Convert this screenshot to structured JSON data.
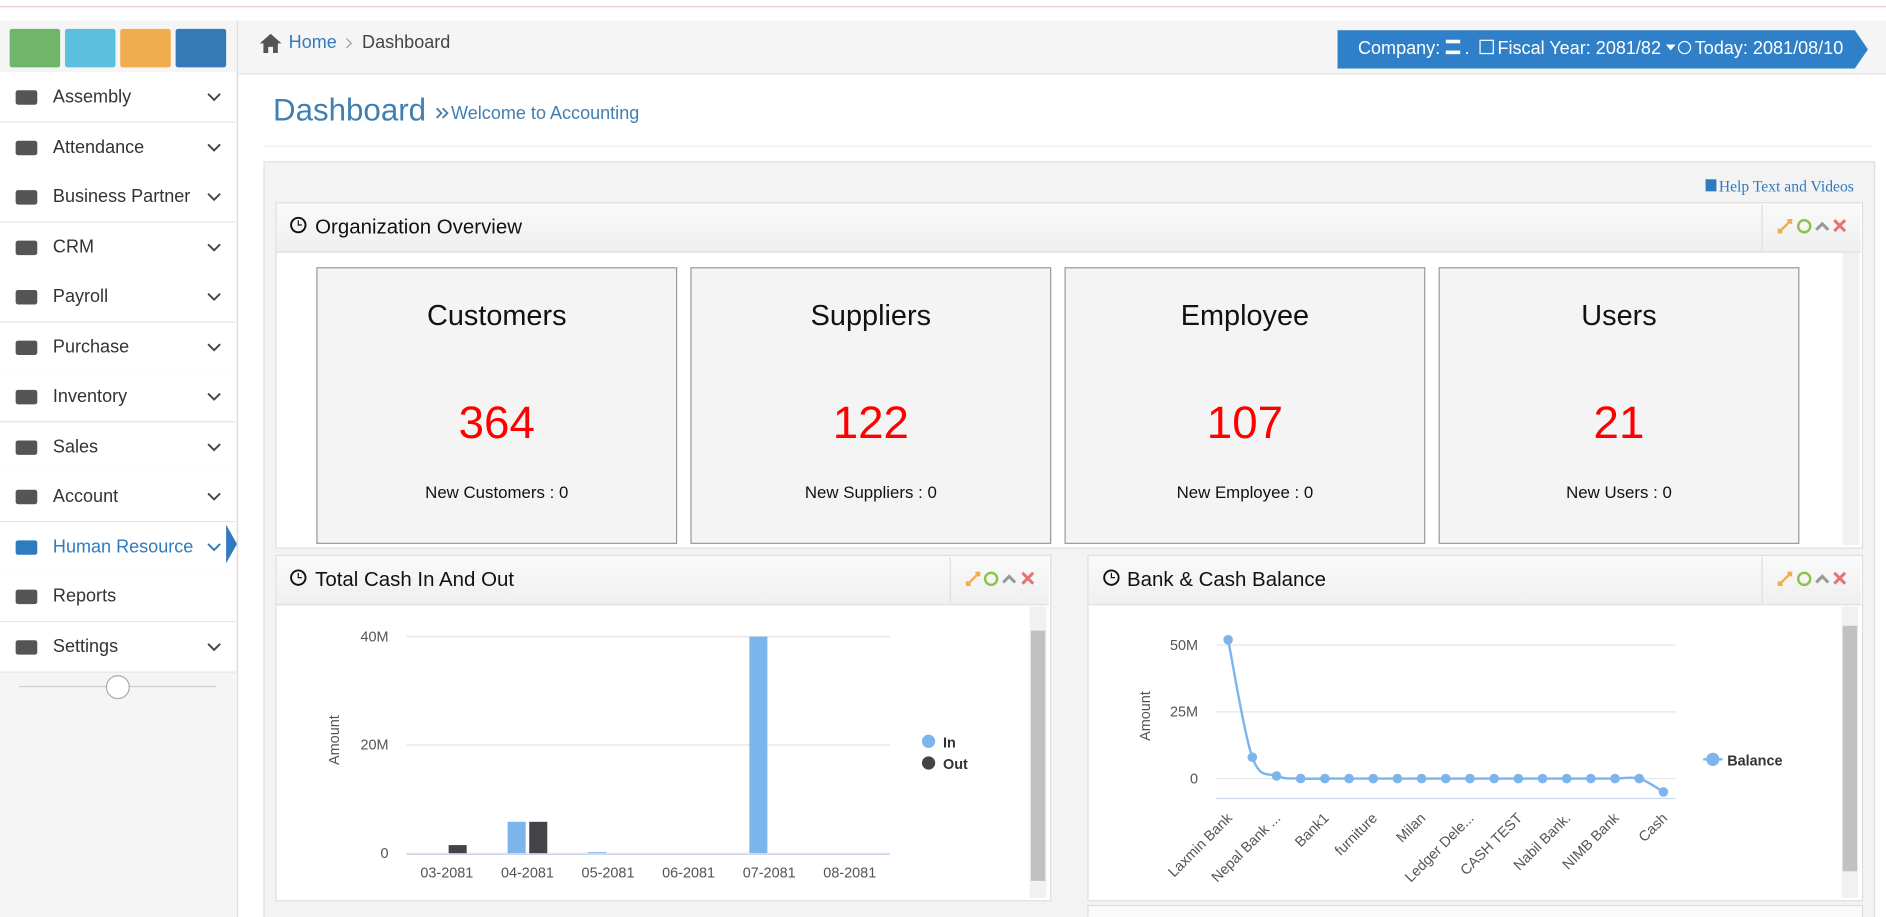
{
  "sidebar": {
    "menu": [
      {
        "label": "Assembly",
        "submenu": true
      },
      {
        "label": "Attendance",
        "submenu": true
      },
      {
        "label": "Business Partner",
        "submenu": true
      },
      {
        "label": "CRM",
        "submenu": true
      },
      {
        "label": "Payroll",
        "submenu": true
      },
      {
        "label": "Purchase",
        "submenu": true
      },
      {
        "label": "Inventory",
        "submenu": true
      },
      {
        "label": "Sales",
        "submenu": true
      },
      {
        "label": "Account",
        "submenu": true
      },
      {
        "label": "Human Resource",
        "submenu": true
      },
      {
        "label": "Reports",
        "submenu": false
      },
      {
        "label": "Settings",
        "submenu": true
      }
    ],
    "active_index": 9
  },
  "breadcrumb": [
    "Home",
    "Dashboard"
  ],
  "header_info": {
    "company": "Company:",
    "company_suffix": ".",
    "fiscal_year": "Fiscal Year: 2081/82",
    "today": "Today: 2081/08/10"
  },
  "page_title": "Dashboard",
  "page_subtitle": "Welcome to Accounting",
  "help_link": "Help Text and Videos",
  "organization_overview": {
    "title": "Organization Overview",
    "cards": [
      {
        "title": "Customers",
        "count": 364,
        "new": "New Customers : 0"
      },
      {
        "title": "Suppliers",
        "count": 122,
        "new": "New Suppliers : 0"
      },
      {
        "title": "Employee",
        "count": 107,
        "new": "New Employee : 0"
      },
      {
        "title": "Users",
        "count": 21,
        "new": "New Users : 0"
      }
    ]
  },
  "chart_data": [
    {
      "type": "bar",
      "title": "Total Cash In And Out",
      "y_label": "Amount",
      "categories": [
        "03-2081",
        "04-2081",
        "05-2081",
        "06-2081",
        "07-2081",
        "08-2081"
      ],
      "series": [
        {
          "name": "In",
          "color": "#7cb5ec",
          "values": [
            0,
            5800000,
            200000,
            0,
            40000000,
            0
          ]
        },
        {
          "name": "Out",
          "color": "#434348",
          "values": [
            1500000,
            5800000,
            0,
            0,
            0,
            0
          ]
        }
      ],
      "ylim": [
        0,
        40000000
      ],
      "yticks": [
        0,
        {
          "value": 20000000,
          "label": "20M"
        },
        {
          "value": 40000000,
          "label": "40M"
        }
      ],
      "grid": true,
      "legend": "right"
    },
    {
      "type": "line",
      "title": "Bank & Cash Balance",
      "y_label": "Amount",
      "categories": [
        "Laxmin Bank",
        null,
        "Nepal Bank ...",
        null,
        "Bank1",
        null,
        "furniture",
        null,
        "Milan",
        null,
        "Ledger Dele...",
        null,
        "CASH TEST",
        null,
        "Nabil Bank.",
        null,
        "NIMB Bank",
        null,
        "Cash"
      ],
      "series": [
        {
          "name": "Balance",
          "color": "#7cb5ec",
          "values": [
            52000000,
            8000000,
            1000000,
            0,
            0,
            0,
            0,
            0,
            0,
            0,
            0,
            0,
            0,
            0,
            0,
            0,
            0,
            0,
            -5000000
          ]
        }
      ],
      "ylim": [
        -7000000,
        55000000
      ],
      "yticks": [
        0,
        {
          "value": 25000000,
          "label": "25M"
        },
        {
          "value": 50000000,
          "label": "50M"
        }
      ],
      "grid": true,
      "legend": "right"
    }
  ]
}
